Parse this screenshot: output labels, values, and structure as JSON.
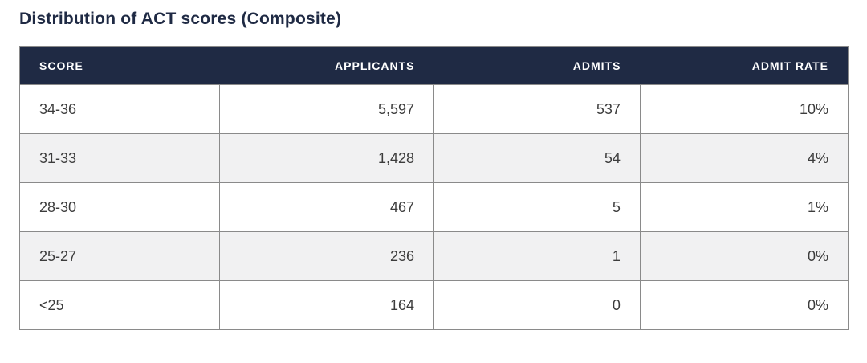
{
  "title": "Distribution of ACT scores (Composite)",
  "colors": {
    "header_bg": "#1f2a44",
    "header_text": "#ffffff",
    "row_bg": "#ffffff",
    "row_alt_bg": "#f1f1f2",
    "border": "#8a8a8a",
    "body_text": "#3c3c3c",
    "title_text": "#1f2a44"
  },
  "table": {
    "columns": [
      {
        "key": "score",
        "label": "SCORE",
        "align": "al"
      },
      {
        "key": "applicants",
        "label": "APPLICANTS",
        "align": "ar"
      },
      {
        "key": "admits",
        "label": "ADMITS",
        "align": "ar"
      },
      {
        "key": "admit-rate",
        "label": "ADMIT RATE",
        "align": "ar"
      }
    ],
    "rows": [
      {
        "cells": [
          "34-36",
          "5,597",
          "537",
          "10%"
        ]
      },
      {
        "cells": [
          "31-33",
          "1,428",
          "54",
          "4%"
        ]
      },
      {
        "cells": [
          "28-30",
          "467",
          "5",
          "1%"
        ]
      },
      {
        "cells": [
          "25-27",
          "236",
          "1",
          "0%"
        ]
      },
      {
        "cells": [
          "<25",
          "164",
          "0",
          "0%"
        ]
      }
    ]
  },
  "chart_data": {
    "type": "table",
    "title": "Distribution of ACT scores (Composite)",
    "columns": [
      "SCORE",
      "APPLICANTS",
      "ADMITS",
      "ADMIT RATE"
    ],
    "rows": [
      {
        "score": "34-36",
        "applicants": 5597,
        "admits": 537,
        "admit_rate_pct": 10
      },
      {
        "score": "31-33",
        "applicants": 1428,
        "admits": 54,
        "admit_rate_pct": 4
      },
      {
        "score": "28-30",
        "applicants": 467,
        "admits": 5,
        "admit_rate_pct": 1
      },
      {
        "score": "25-27",
        "applicants": 236,
        "admits": 1,
        "admit_rate_pct": 0
      },
      {
        "score": "<25",
        "applicants": 164,
        "admits": 0,
        "admit_rate_pct": 0
      }
    ],
    "layout": {
      "header_style": "dark navy bar, white uppercase bold labels",
      "first_column_align": "left",
      "numeric_columns_align": "right",
      "zebra_striping": true
    }
  }
}
